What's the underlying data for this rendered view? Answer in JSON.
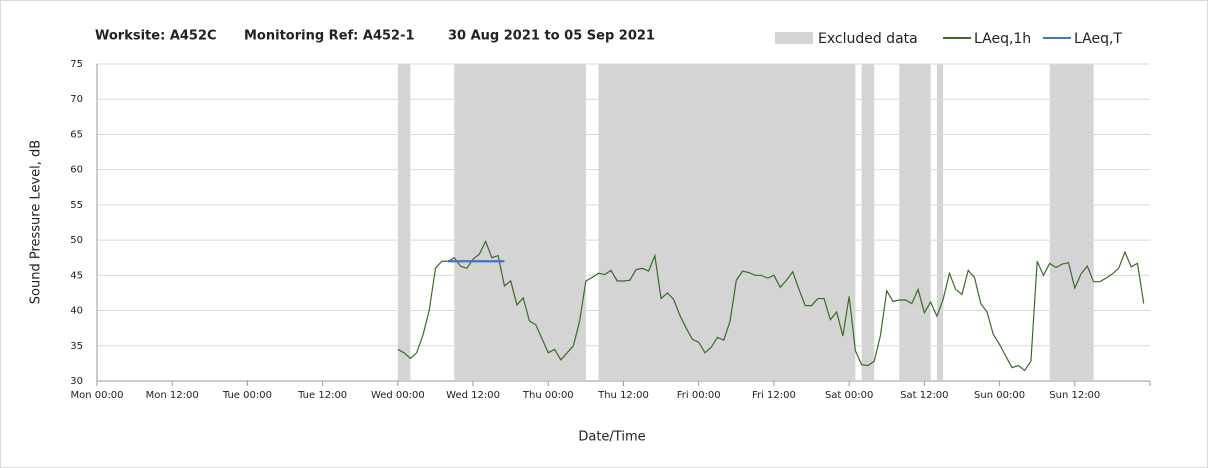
{
  "chart_data": {
    "type": "line",
    "title_parts": [
      "Worksite: A452C",
      "Monitoring Ref: A452-1",
      "30 Aug 2021 to 05 Sep 2021"
    ],
    "xlabel": "Date/Time",
    "ylabel": "Sound Pressure Level, dB",
    "xlim": [
      0,
      168
    ],
    "ylim": [
      30,
      75
    ],
    "xticks": [
      {
        "value": 0,
        "label": "Mon 00:00"
      },
      {
        "value": 12,
        "label": "Mon 12:00"
      },
      {
        "value": 24,
        "label": "Tue 00:00"
      },
      {
        "value": 36,
        "label": "Tue 12:00"
      },
      {
        "value": 48,
        "label": "Wed 00:00"
      },
      {
        "value": 60,
        "label": "Wed 12:00"
      },
      {
        "value": 72,
        "label": "Thu 00:00"
      },
      {
        "value": 84,
        "label": "Thu 12:00"
      },
      {
        "value": 96,
        "label": "Fri 00:00"
      },
      {
        "value": 108,
        "label": "Fri 12:00"
      },
      {
        "value": 120,
        "label": "Sat 00:00"
      },
      {
        "value": 132,
        "label": "Sat 12:00"
      },
      {
        "value": 144,
        "label": "Sun 00:00"
      },
      {
        "value": 156,
        "label": "Sun 12:00"
      }
    ],
    "yticks": [
      30,
      35,
      40,
      45,
      50,
      55,
      60,
      65,
      70,
      75
    ],
    "grid": true,
    "excluded": {
      "name": "Excluded data",
      "color": "#d4d4d4",
      "x_ranges": [
        [
          48,
          50
        ],
        [
          57,
          78
        ],
        [
          80,
          121
        ],
        [
          122,
          124
        ],
        [
          128,
          133
        ],
        [
          134,
          135
        ],
        [
          152,
          159
        ]
      ]
    },
    "series": [
      {
        "name": "LAeq,1h",
        "color": "#3a6b2a",
        "x": [
          48,
          49,
          50,
          51,
          52,
          53,
          54,
          55,
          56,
          57,
          58,
          59,
          60,
          61,
          62,
          63,
          64,
          65,
          66,
          67,
          68,
          69,
          70,
          71,
          72,
          73,
          74,
          75,
          76,
          77,
          78,
          79,
          80,
          81,
          82,
          83,
          84,
          85,
          86,
          87,
          88,
          89,
          90,
          91,
          92,
          93,
          94,
          95,
          96,
          97,
          98,
          99,
          100,
          101,
          102,
          103,
          104,
          105,
          106,
          107,
          108,
          109,
          110,
          111,
          112,
          113,
          114,
          115,
          116,
          117,
          118,
          119,
          120,
          121,
          122,
          123,
          124,
          125,
          126,
          127,
          128,
          129,
          130,
          131,
          132,
          133,
          134,
          135,
          136,
          137,
          138,
          139,
          140,
          141,
          142,
          143,
          144,
          145,
          146,
          147,
          148,
          149,
          150,
          151,
          152,
          153,
          154,
          155,
          156,
          157,
          158,
          159,
          160,
          161,
          162,
          163,
          164,
          165,
          166,
          167
        ],
        "values": [
          34.5,
          34,
          33.2,
          34,
          36.5,
          40,
          46,
          47,
          47,
          47.5,
          46.3,
          46,
          47.3,
          48,
          49.8,
          47.5,
          47.8,
          43.5,
          44.2,
          40.8,
          41.8,
          38.5,
          38,
          36,
          34,
          34.5,
          33,
          34,
          35,
          38.5,
          44.2,
          44.7,
          45.3,
          45.1,
          45.7,
          44.2,
          44.2,
          44.3,
          45.8,
          46,
          45.6,
          47.8,
          41.7,
          42.5,
          41.6,
          39.3,
          37.5,
          35.9,
          35.5,
          34,
          34.8,
          36.2,
          35.8,
          38.5,
          44.3,
          45.6,
          45.4,
          45,
          45,
          44.6,
          45,
          43.3,
          44.3,
          45.5,
          43,
          40.7,
          40.7,
          41.7,
          41.7,
          38.7,
          39.8,
          36.4,
          42,
          34.3,
          32.3,
          32.2,
          32.8,
          36.5,
          42.8,
          41.3,
          41.5,
          41.5,
          41,
          43,
          39.7,
          41.2,
          39.2,
          41.6,
          45.3,
          43,
          42.3,
          45.7,
          44.7,
          41,
          39.8,
          36.6,
          35.2,
          33.5,
          31.9,
          32.2,
          31.5,
          32.8,
          47,
          45,
          46.7,
          46.1,
          46.6,
          46.8,
          43.2,
          45.2,
          46.3,
          44.1,
          44.1,
          44.6,
          45.2,
          46,
          48.3,
          46.2,
          46.7,
          41
        ]
      },
      {
        "name": "LAeq,T",
        "color": "#4472c4",
        "x": [
          56,
          65
        ],
        "values": [
          47,
          47
        ]
      }
    ]
  }
}
